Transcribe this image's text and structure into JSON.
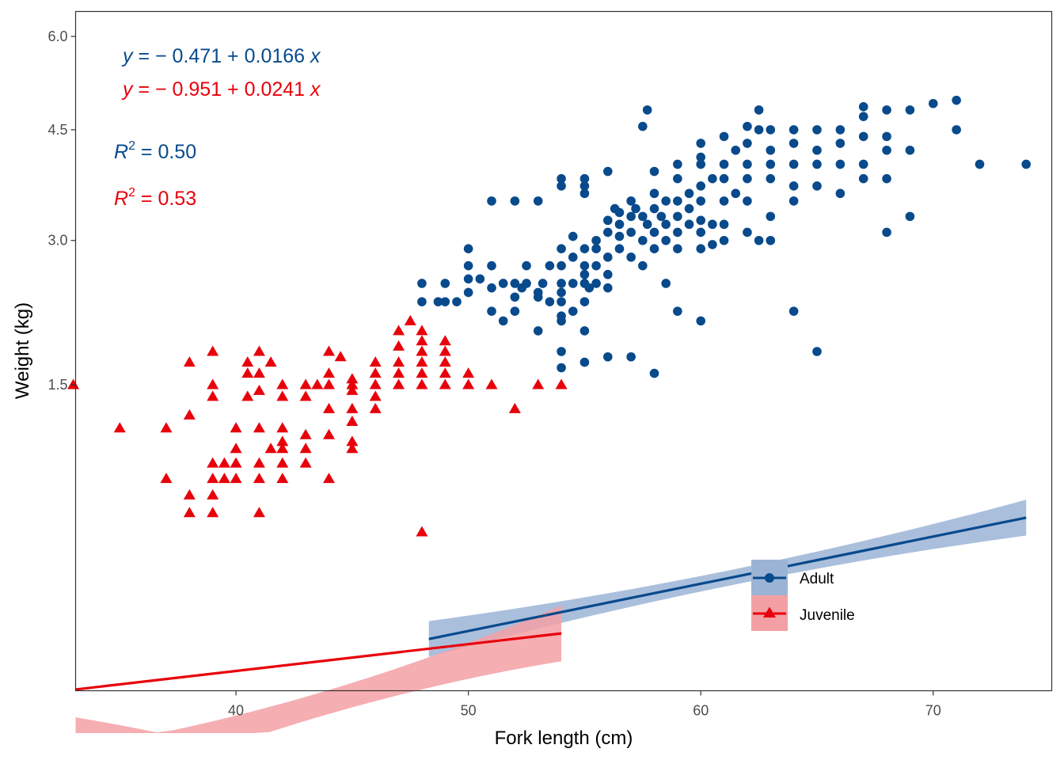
{
  "chart_data": {
    "type": "scatter",
    "title": "",
    "xlabel": "Fork length (cm)",
    "ylabel": "Weight (kg)",
    "xlim": [
      33.1,
      75.1
    ],
    "xticks": [
      40,
      50,
      60,
      70
    ],
    "ytick_values": [
      1.5,
      3.0,
      4.5,
      6.0
    ],
    "ytick_labels": [
      "1.5",
      "3.0",
      "4.5",
      "6.0"
    ],
    "yscale": "sqrt",
    "grid": false,
    "legend_position": "bottom-right",
    "colors": {
      "adult": "#084A8C",
      "adult_band": "#9BB4D6",
      "juvenile": "#E8000B",
      "juvenile_band": "#F3A0A4"
    },
    "annotations": {
      "adult_eq": {
        "y": "y",
        "rest": " = − 0.471 + 0.0166 ",
        "x": "x"
      },
      "juvenile_eq": {
        "y": "y",
        "rest": " = − 0.951 + 0.0241 ",
        "x": "x"
      },
      "adult_r2": {
        "r": "R",
        "sup": "2",
        "rest": " = 0.50"
      },
      "juvenile_r2": {
        "r": "R",
        "sup": "2",
        "rest": " = 0.53"
      }
    },
    "series": [
      {
        "name": "Adult",
        "marker": "circle",
        "fit": {
          "intercept": -0.471,
          "slope": 0.0166,
          "x_range": [
            48.3,
            74.0
          ],
          "r2": 0.5
        },
        "points": [
          [
            48,
            2.5
          ],
          [
            48,
            2.3
          ],
          [
            48.7,
            2.3
          ],
          [
            49,
            2.3
          ],
          [
            49,
            2.5
          ],
          [
            49.5,
            2.3
          ],
          [
            50,
            2.7
          ],
          [
            50,
            2.4
          ],
          [
            50,
            2.9
          ],
          [
            50,
            2.55
          ],
          [
            50.5,
            2.55
          ],
          [
            51,
            2.7
          ],
          [
            51,
            2.45
          ],
          [
            51,
            2.2
          ],
          [
            51,
            3.5
          ],
          [
            51.5,
            2.5
          ],
          [
            51.5,
            2.1
          ],
          [
            52,
            2.5
          ],
          [
            52,
            2.2
          ],
          [
            52,
            2.35
          ],
          [
            52,
            3.5
          ],
          [
            52.3,
            2.45
          ],
          [
            52.5,
            2.7
          ],
          [
            52.5,
            2.5
          ],
          [
            53,
            2.35
          ],
          [
            53,
            2.0
          ],
          [
            53,
            2.4
          ],
          [
            53,
            3.5
          ],
          [
            53.2,
            2.5
          ],
          [
            53.5,
            2.7
          ],
          [
            53.5,
            2.3
          ],
          [
            54,
            2.7
          ],
          [
            54,
            2.4
          ],
          [
            54,
            2.5
          ],
          [
            54,
            2.3
          ],
          [
            54,
            2.1
          ],
          [
            54,
            2.15
          ],
          [
            54,
            1.8
          ],
          [
            54,
            1.65
          ],
          [
            54,
            2.9
          ],
          [
            54,
            3.7
          ],
          [
            54,
            3.8
          ],
          [
            54.5,
            2.8
          ],
          [
            54.5,
            2.5
          ],
          [
            54.5,
            2.2
          ],
          [
            54.5,
            3.05
          ],
          [
            55,
            2.9
          ],
          [
            55,
            2.7
          ],
          [
            55,
            2.5
          ],
          [
            55,
            2.3
          ],
          [
            55,
            2.6
          ],
          [
            55,
            2.0
          ],
          [
            55,
            1.7
          ],
          [
            55,
            3.6
          ],
          [
            55,
            3.7
          ],
          [
            55,
            3.8
          ],
          [
            55.2,
            2.45
          ],
          [
            55.5,
            2.9
          ],
          [
            55.5,
            2.7
          ],
          [
            55.5,
            2.5
          ],
          [
            55.5,
            3.0
          ],
          [
            56,
            3.1
          ],
          [
            56,
            3.25
          ],
          [
            56,
            2.8
          ],
          [
            56,
            2.6
          ],
          [
            56,
            2.45
          ],
          [
            56,
            1.75
          ],
          [
            56,
            3.9
          ],
          [
            56.3,
            3.4
          ],
          [
            56.5,
            3.2
          ],
          [
            56.5,
            3.05
          ],
          [
            56.5,
            2.9
          ],
          [
            56.5,
            3.35
          ],
          [
            57,
            3.3
          ],
          [
            57,
            3.1
          ],
          [
            57,
            2.8
          ],
          [
            57,
            3.5
          ],
          [
            57,
            1.75
          ],
          [
            57.2,
            3.4
          ],
          [
            57.5,
            3.3
          ],
          [
            57.5,
            3.0
          ],
          [
            57.5,
            2.7
          ],
          [
            57.5,
            4.55
          ],
          [
            57.7,
            3.2
          ],
          [
            57.7,
            4.8
          ],
          [
            58,
            3.4
          ],
          [
            58,
            3.1
          ],
          [
            58,
            2.9
          ],
          [
            58,
            3.6
          ],
          [
            58,
            3.9
          ],
          [
            58,
            1.6
          ],
          [
            58.3,
            3.3
          ],
          [
            58.5,
            3.5
          ],
          [
            58.5,
            2.5
          ],
          [
            58.5,
            3.2
          ],
          [
            58.5,
            3.0
          ],
          [
            59,
            3.5
          ],
          [
            59,
            3.8
          ],
          [
            59,
            3.3
          ],
          [
            59,
            2.9
          ],
          [
            59,
            3.1
          ],
          [
            59,
            2.2
          ],
          [
            59,
            4.0
          ],
          [
            59.5,
            3.4
          ],
          [
            59.5,
            3.2
          ],
          [
            59.5,
            3.6
          ],
          [
            60,
            3.5
          ],
          [
            60,
            3.7
          ],
          [
            60,
            4.0
          ],
          [
            60,
            4.1
          ],
          [
            60,
            3.25
          ],
          [
            60,
            2.9
          ],
          [
            60,
            3.1
          ],
          [
            60,
            2.1
          ],
          [
            60,
            4.3
          ],
          [
            60.5,
            3.8
          ],
          [
            60.5,
            3.2
          ],
          [
            60.5,
            2.95
          ],
          [
            61,
            4.0
          ],
          [
            61,
            3.8
          ],
          [
            61,
            3.5
          ],
          [
            61,
            3.2
          ],
          [
            61,
            3.0
          ],
          [
            61,
            4.4
          ],
          [
            61.5,
            3.6
          ],
          [
            61.5,
            4.2
          ],
          [
            62,
            4.0
          ],
          [
            62,
            3.8
          ],
          [
            62,
            3.5
          ],
          [
            62,
            3.1
          ],
          [
            62,
            4.3
          ],
          [
            62,
            4.55
          ],
          [
            62.5,
            4.5
          ],
          [
            62.5,
            4.8
          ],
          [
            62.5,
            3.0
          ],
          [
            63,
            4.0
          ],
          [
            63,
            3.8
          ],
          [
            63,
            4.5
          ],
          [
            63,
            3.3
          ],
          [
            63,
            3.0
          ],
          [
            63,
            4.2
          ],
          [
            64,
            4.3
          ],
          [
            64,
            4.0
          ],
          [
            64,
            3.7
          ],
          [
            64,
            3.5
          ],
          [
            64,
            4.5
          ],
          [
            64,
            2.2
          ],
          [
            65,
            4.2
          ],
          [
            65,
            4.0
          ],
          [
            65,
            3.7
          ],
          [
            65,
            4.5
          ],
          [
            65,
            1.8
          ],
          [
            66,
            4.3
          ],
          [
            66,
            4.5
          ],
          [
            66,
            4.0
          ],
          [
            66,
            3.6
          ],
          [
            67,
            4.4
          ],
          [
            67,
            4.7
          ],
          [
            67,
            4.85
          ],
          [
            67,
            4.0
          ],
          [
            67,
            3.8
          ],
          [
            68,
            4.8
          ],
          [
            68,
            4.4
          ],
          [
            68,
            4.2
          ],
          [
            68,
            3.8
          ],
          [
            68,
            3.1
          ],
          [
            69,
            4.8
          ],
          [
            69,
            4.2
          ],
          [
            69,
            3.3
          ],
          [
            70,
            4.9
          ],
          [
            71,
            4.5
          ],
          [
            71,
            4.95
          ],
          [
            72,
            4.0
          ],
          [
            74,
            4.0
          ]
        ]
      },
      {
        "name": "Juvenile",
        "marker": "triangle",
        "fit": {
          "intercept": -0.951,
          "slope": 0.0241,
          "x_range": [
            33.1,
            54.0
          ],
          "r2": 0.53
        },
        "points": [
          [
            33,
            1.5
          ],
          [
            35,
            1.15
          ],
          [
            37,
            1.15
          ],
          [
            37,
            0.8
          ],
          [
            38,
            1.7
          ],
          [
            38,
            1.25
          ],
          [
            38,
            0.7
          ],
          [
            38,
            0.6
          ],
          [
            39,
            1.8
          ],
          [
            39,
            1.5
          ],
          [
            39,
            1.4
          ],
          [
            39,
            0.9
          ],
          [
            39,
            0.8
          ],
          [
            39,
            0.7
          ],
          [
            39,
            0.6
          ],
          [
            39.5,
            0.9
          ],
          [
            39.5,
            0.8
          ],
          [
            40,
            1.15
          ],
          [
            40,
            1.0
          ],
          [
            40,
            0.9
          ],
          [
            40,
            0.8
          ],
          [
            40.5,
            1.7
          ],
          [
            40.5,
            1.6
          ],
          [
            40.5,
            1.4
          ],
          [
            41,
            1.8
          ],
          [
            41,
            1.6
          ],
          [
            41,
            1.45
          ],
          [
            41,
            1.15
          ],
          [
            41,
            0.9
          ],
          [
            41,
            0.8
          ],
          [
            41,
            0.6
          ],
          [
            41.5,
            1.7
          ],
          [
            41.5,
            1.0
          ],
          [
            42,
            1.5
          ],
          [
            42,
            1.4
          ],
          [
            42,
            1.15
          ],
          [
            42,
            1.05
          ],
          [
            42,
            1.0
          ],
          [
            42,
            0.9
          ],
          [
            42,
            0.8
          ],
          [
            43,
            1.5
          ],
          [
            43,
            1.4
          ],
          [
            43,
            1.1
          ],
          [
            43,
            1.0
          ],
          [
            43,
            0.9
          ],
          [
            43.5,
            1.5
          ],
          [
            44,
            1.8
          ],
          [
            44,
            1.6
          ],
          [
            44,
            1.5
          ],
          [
            44,
            1.3
          ],
          [
            44,
            1.1
          ],
          [
            44,
            0.8
          ],
          [
            44.5,
            1.75
          ],
          [
            45,
            1.55
          ],
          [
            45,
            1.5
          ],
          [
            45,
            1.45
          ],
          [
            45,
            1.3
          ],
          [
            45,
            1.2
          ],
          [
            45,
            1.05
          ],
          [
            45,
            1.0
          ],
          [
            46,
            1.7
          ],
          [
            46,
            1.6
          ],
          [
            46,
            1.5
          ],
          [
            46,
            1.4
          ],
          [
            46,
            1.3
          ],
          [
            47,
            1.7
          ],
          [
            47,
            1.6
          ],
          [
            47,
            1.5
          ],
          [
            47,
            1.85
          ],
          [
            47,
            2.0
          ],
          [
            47.5,
            2.1
          ],
          [
            48,
            1.9
          ],
          [
            48,
            1.8
          ],
          [
            48,
            1.7
          ],
          [
            48,
            1.6
          ],
          [
            48,
            1.5
          ],
          [
            48,
            2.0
          ],
          [
            48,
            0.5
          ],
          [
            49,
            1.9
          ],
          [
            49,
            1.8
          ],
          [
            49,
            1.7
          ],
          [
            49,
            1.6
          ],
          [
            49,
            1.5
          ],
          [
            50,
            1.6
          ],
          [
            50,
            1.5
          ],
          [
            51,
            1.5
          ],
          [
            52,
            1.3
          ],
          [
            53,
            1.5
          ],
          [
            54,
            1.5
          ]
        ]
      }
    ]
  }
}
